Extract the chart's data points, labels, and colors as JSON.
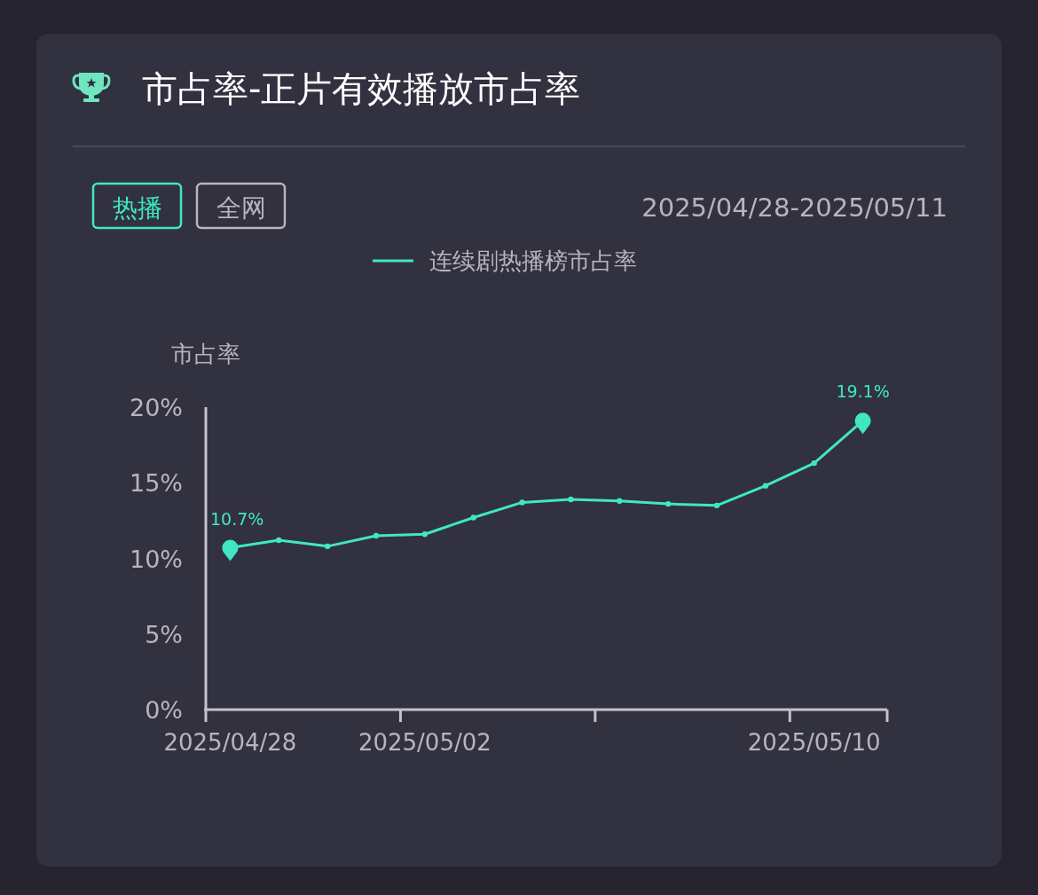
{
  "chart_data": {
    "type": "line",
    "title": "市占率-正片有效播放市占率",
    "subtitle": "2025/04/28-2025/05/11",
    "annotations": [
      "热播",
      "全网"
    ],
    "ylabel": "市占率",
    "categories": [
      "2025/04/28",
      null,
      null,
      null,
      "2025/05/02",
      null,
      null,
      null,
      null,
      null,
      null,
      null,
      "2025/05/10",
      null
    ],
    "series": [
      {
        "name": "连续剧热播榜市占率",
        "color": "#3fe8c2",
        "values": [
          10.7,
          11.2,
          10.8,
          11.5,
          11.6,
          12.7,
          13.7,
          13.9,
          13.8,
          13.6,
          13.5,
          14.8,
          16.3,
          19.1
        ],
        "value_labels": [
          "10.7%",
          null,
          null,
          null,
          null,
          null,
          null,
          null,
          null,
          null,
          null,
          null,
          null,
          "19.1%"
        ]
      }
    ],
    "ylim": [
      0,
      20
    ],
    "yticks": [
      {
        "value": 0,
        "label": "0%"
      },
      {
        "value": 5,
        "label": "5%"
      },
      {
        "value": 10,
        "label": "10%"
      },
      {
        "value": 15,
        "label": "15%"
      },
      {
        "value": 20,
        "label": "20%"
      }
    ],
    "legend": "top",
    "marker": "circle",
    "line_style": "solid"
  }
}
